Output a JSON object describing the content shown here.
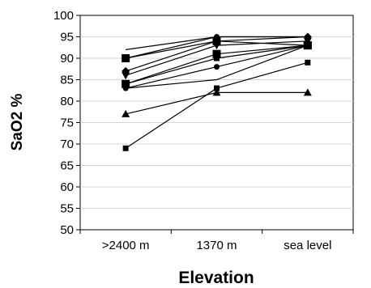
{
  "chart_data": {
    "type": "line",
    "xlabel": "Elevation",
    "ylabel": "SaO2 %",
    "categories": [
      ">2400 m",
      "1370 m",
      "sea level"
    ],
    "ylim": [
      50,
      100
    ],
    "yticks": [
      50,
      55,
      60,
      65,
      70,
      75,
      80,
      85,
      90,
      95,
      100
    ],
    "grid": true,
    "legend": "none",
    "series": [
      {
        "values": [
          92,
          95,
          95
        ],
        "marker": "none"
      },
      {
        "values": [
          90,
          95,
          95
        ],
        "marker": "circle"
      },
      {
        "values": [
          90,
          94,
          93
        ],
        "marker": "square-large"
      },
      {
        "values": [
          87,
          94,
          95
        ],
        "marker": "diamond"
      },
      {
        "values": [
          86,
          93,
          94
        ],
        "marker": "triangle-down"
      },
      {
        "values": [
          84,
          91,
          93
        ],
        "marker": "square-large"
      },
      {
        "values": [
          84,
          90,
          93
        ],
        "marker": "square"
      },
      {
        "values": [
          83,
          88,
          93
        ],
        "marker": "circle"
      },
      {
        "values": [
          83,
          85,
          93
        ],
        "marker": "none"
      },
      {
        "values": [
          77,
          82,
          82
        ],
        "marker": "triangle"
      },
      {
        "values": [
          69,
          83,
          89
        ],
        "marker": "square"
      }
    ]
  }
}
